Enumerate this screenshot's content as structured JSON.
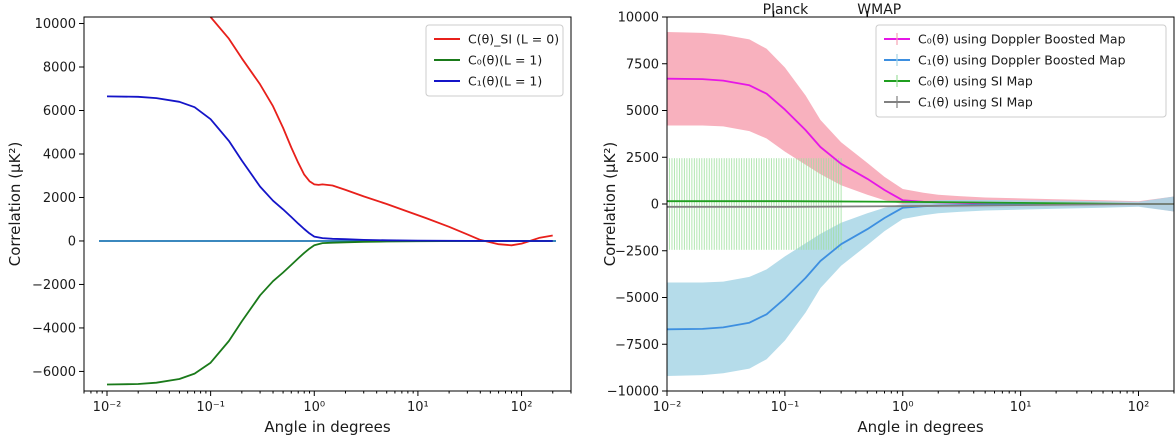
{
  "chart_data": [
    {
      "type": "line",
      "xlabel": "Angle in degrees",
      "ylabel": "Correlation  (μK²)",
      "xscale": "log",
      "xlim": [
        0.006,
        300
      ],
      "ylim": [
        -6900,
        10300
      ],
      "xticks": [
        0.01,
        0.1,
        1,
        10,
        100
      ],
      "xtick_labels": [
        "10⁻²",
        "10⁻¹",
        "10⁰",
        "10¹",
        "10²"
      ],
      "yticks": [
        -6000,
        -4000,
        -2000,
        0,
        2000,
        4000,
        6000,
        8000,
        10000
      ],
      "ytick_labels": [
        "−6000",
        "−4000",
        "−2000",
        "0",
        "2000",
        "4000",
        "6000",
        "8000",
        "10000"
      ],
      "legend_position": "top-right",
      "grid": false,
      "hline": {
        "y": 0,
        "color": "#1f77b4"
      },
      "series": [
        {
          "name": "C(θ)_SI (L = 0)",
          "color": "#e8201b",
          "x": [
            0.08,
            0.1,
            0.15,
            0.2,
            0.3,
            0.4,
            0.5,
            0.6,
            0.7,
            0.8,
            0.9,
            1.0,
            1.1,
            1.2,
            1.5,
            2,
            3,
            5,
            8,
            12,
            20,
            30,
            40,
            60,
            80,
            100,
            120,
            150,
            200
          ],
          "y": [
            10800,
            10300,
            9300,
            8400,
            7200,
            6200,
            5200,
            4300,
            3600,
            3050,
            2750,
            2600,
            2580,
            2600,
            2550,
            2350,
            2050,
            1700,
            1350,
            1050,
            650,
            300,
            50,
            -150,
            -200,
            -120,
            0,
            150,
            250
          ]
        },
        {
          "name": "C₀(θ)(L = 1)",
          "color": "#1a7a1a",
          "x": [
            0.01,
            0.02,
            0.03,
            0.05,
            0.07,
            0.1,
            0.15,
            0.2,
            0.3,
            0.4,
            0.5,
            0.6,
            0.7,
            0.8,
            0.9,
            1.0,
            1.2,
            1.5,
            2,
            3,
            5,
            10,
            30,
            100,
            200
          ],
          "y": [
            -6600,
            -6580,
            -6520,
            -6350,
            -6100,
            -5600,
            -4600,
            -3700,
            -2500,
            -1850,
            -1450,
            -1100,
            -800,
            -550,
            -350,
            -200,
            -100,
            -80,
            -60,
            -40,
            -25,
            -10,
            0,
            0,
            0
          ]
        },
        {
          "name": "C₁(θ)(L = 1)",
          "color": "#1414c8",
          "x": [
            0.01,
            0.02,
            0.03,
            0.05,
            0.07,
            0.1,
            0.15,
            0.2,
            0.3,
            0.4,
            0.5,
            0.6,
            0.7,
            0.8,
            0.9,
            1.0,
            1.2,
            1.5,
            2,
            3,
            5,
            10,
            30,
            100,
            200
          ],
          "y": [
            6650,
            6630,
            6570,
            6400,
            6150,
            5600,
            4600,
            3700,
            2500,
            1850,
            1450,
            1100,
            800,
            550,
            350,
            200,
            130,
            100,
            80,
            50,
            30,
            15,
            5,
            0,
            0
          ]
        }
      ]
    },
    {
      "type": "line",
      "xlabel": "Angle in degrees",
      "ylabel": "Correlation  (μK²)",
      "xscale": "log",
      "xlim": [
        0.01,
        200
      ],
      "ylim": [
        -10000,
        10000
      ],
      "xticks": [
        0.01,
        0.1,
        1,
        10,
        100
      ],
      "xtick_labels": [
        "10⁻²",
        "10⁻¹",
        "10⁰",
        "10¹",
        "10²"
      ],
      "yticks": [
        -10000,
        -7500,
        -5000,
        -2500,
        0,
        2500,
        5000,
        7500,
        10000
      ],
      "ytick_labels": [
        "−10000",
        "−7500",
        "−5000",
        "−2500",
        "0",
        "2500",
        "5000",
        "7500",
        "10000"
      ],
      "legend_position": "top-right",
      "grid": false,
      "top_markers": [
        {
          "label": "Planck",
          "x": 0.08
        },
        {
          "label": "WMAP",
          "x": 0.5
        }
      ],
      "series": [
        {
          "name": "C₀(θ) using Doppler Boosted Map",
          "color": "#e617e6",
          "band_color": "#f7a3b3",
          "x": [
            0.01,
            0.02,
            0.03,
            0.05,
            0.07,
            0.1,
            0.15,
            0.2,
            0.3,
            0.5,
            0.7,
            1.0,
            1.5,
            2,
            3,
            5,
            10,
            20,
            50,
            100,
            200
          ],
          "y": [
            6700,
            6680,
            6600,
            6350,
            5900,
            5050,
            3950,
            3050,
            2150,
            1350,
            750,
            200,
            120,
            90,
            60,
            40,
            20,
            10,
            5,
            0,
            0
          ],
          "lower": [
            4200,
            4200,
            4150,
            3900,
            3500,
            2800,
            2100,
            1600,
            1000,
            500,
            200,
            0,
            -150,
            -200,
            -220,
            -220,
            -200,
            -180,
            -150,
            -120,
            -400
          ],
          "upper": [
            9200,
            9150,
            9050,
            8800,
            8300,
            7300,
            5800,
            4500,
            3300,
            2200,
            1450,
            800,
            600,
            500,
            420,
            350,
            300,
            250,
            200,
            150,
            400
          ]
        },
        {
          "name": "C₁(θ) using Doppler Boosted Map",
          "color": "#3d8fe0",
          "band_color": "#a8d6e6",
          "x": [
            0.01,
            0.02,
            0.03,
            0.05,
            0.07,
            0.1,
            0.15,
            0.2,
            0.3,
            0.5,
            0.7,
            1.0,
            1.5,
            2,
            3,
            5,
            10,
            20,
            50,
            100,
            200
          ],
          "y": [
            -6700,
            -6680,
            -6600,
            -6350,
            -5900,
            -5050,
            -3950,
            -3050,
            -2150,
            -1350,
            -750,
            -200,
            -120,
            -90,
            -60,
            -40,
            -20,
            -10,
            -5,
            0,
            0
          ],
          "lower": [
            -9200,
            -9150,
            -9050,
            -8800,
            -8300,
            -7300,
            -5800,
            -4500,
            -3300,
            -2200,
            -1450,
            -800,
            -600,
            -500,
            -420,
            -350,
            -300,
            -250,
            -200,
            -150,
            -400
          ],
          "upper": [
            -4200,
            -4200,
            -4150,
            -3900,
            -3500,
            -2800,
            -2100,
            -1600,
            -1000,
            -500,
            -200,
            0,
            150,
            200,
            220,
            220,
            200,
            180,
            150,
            120,
            400
          ]
        },
        {
          "name": "C₀(θ) using SI Map",
          "color": "#1f9e1f",
          "errorbar_color": "#9ee09e",
          "x": [
            0.01,
            0.1,
            1,
            10,
            100,
            200
          ],
          "y": [
            150,
            150,
            120,
            60,
            0,
            0
          ],
          "errorbar_x": [
            0.01,
            0.3
          ],
          "errorbar_range": [
            -2450,
            2450
          ]
        },
        {
          "name": "C₁(θ) using SI Map",
          "color": "#808080",
          "x": [
            0.01,
            0.1,
            1,
            10,
            100,
            200
          ],
          "y": [
            -150,
            -150,
            -120,
            -60,
            0,
            0
          ]
        }
      ]
    }
  ]
}
